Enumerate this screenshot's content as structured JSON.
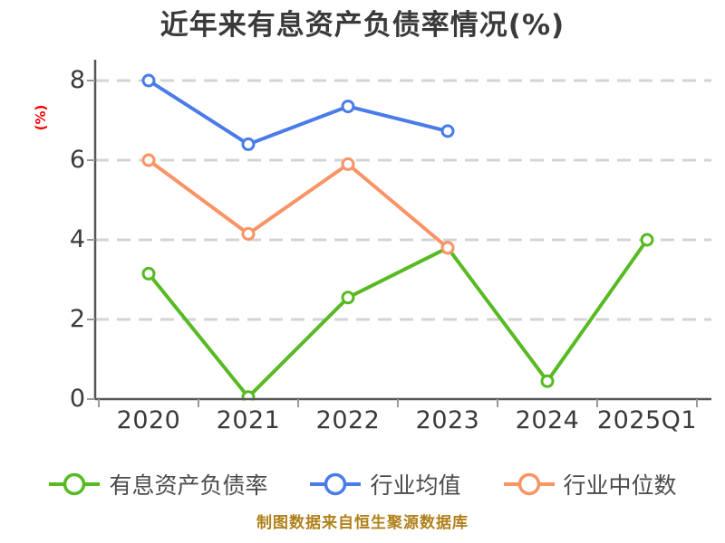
{
  "title": "近年来有息资产负债率情况(%)",
  "y_axis": {
    "label": "(%)",
    "label_color": "#fe0101",
    "ticks": [
      0,
      2,
      4,
      6,
      8
    ],
    "range": [
      0,
      8
    ]
  },
  "x_axis": {
    "categories": [
      "2020",
      "2021",
      "2022",
      "2023",
      "2024",
      "2025Q1"
    ]
  },
  "chart_data": {
    "type": "line",
    "title": "近年来有息资产负债率情况(%)",
    "ylabel": "(%)",
    "ylim": [
      0,
      8
    ],
    "yticks": [
      0,
      2,
      4,
      6,
      8
    ],
    "grid": "horizontal-dashed",
    "legend_position": "bottom",
    "categories": [
      "2020",
      "2021",
      "2022",
      "2023",
      "2024",
      "2025Q1"
    ],
    "series": [
      {
        "name": "有息资产负债率",
        "color": "#57ba23",
        "values": [
          3.15,
          0.05,
          2.55,
          3.8,
          0.45,
          4.0
        ]
      },
      {
        "name": "行业均值",
        "color": "#4a7ce9",
        "values": [
          8.0,
          6.4,
          7.35,
          6.73,
          null,
          null
        ]
      },
      {
        "name": "行业中位数",
        "color": "#fa9365",
        "values": [
          6.0,
          4.15,
          5.9,
          3.8,
          null,
          null
        ]
      }
    ]
  },
  "legend": {
    "items": [
      {
        "label": "有息资产负债率",
        "color": "#57ba23"
      },
      {
        "label": "行业均值",
        "color": "#4a7ce9"
      },
      {
        "label": "行业中位数",
        "color": "#fa9365"
      }
    ]
  },
  "footer": {
    "text": "制图数据来自恒生聚源数据库",
    "color": "#b0801a"
  },
  "styles": {
    "background": "#ffffff",
    "title_color": "#3a3a3a",
    "axis_text_color": "#3a3a3a",
    "legend_text_color": "#4b4b4b",
    "grid_color": "#d4d4d4",
    "axis_color": "#565656",
    "tick_color": "#9a9a9a",
    "marker_fill": "#ffffff"
  }
}
